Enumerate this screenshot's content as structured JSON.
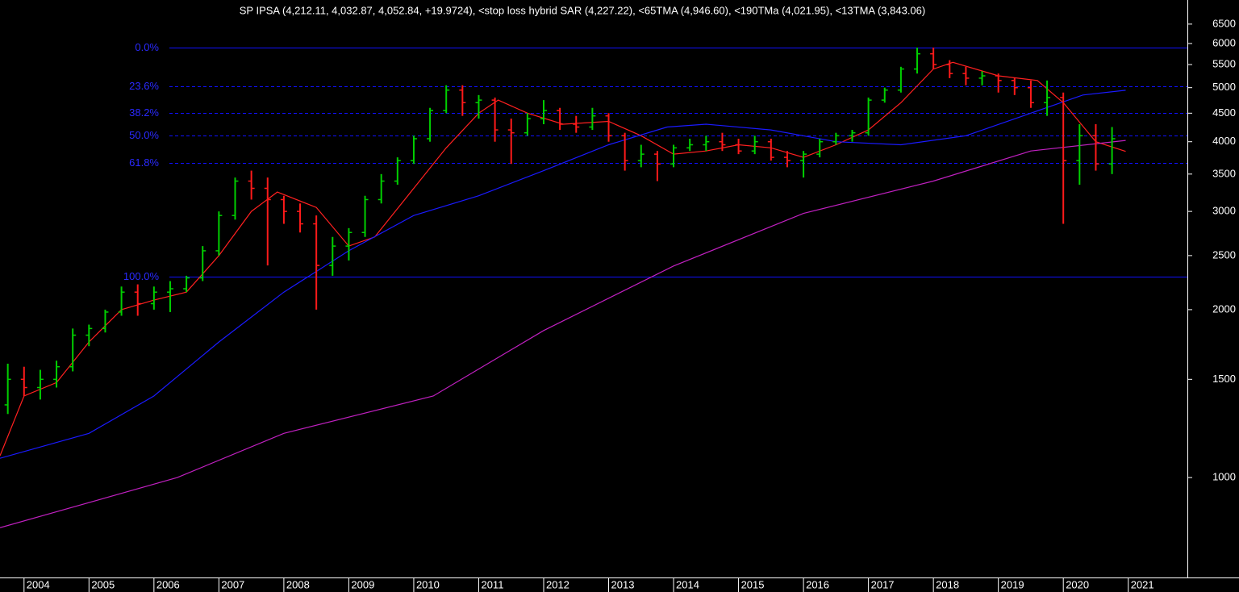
{
  "chart_data": {
    "type": "ohlc",
    "title": "SP IPSA (4,212.11, 4,032.87, 4,052.84, +19.9724), <stop loss hybrid SAR (4,227.22), <65TMA (4,946.60), <190TMa (4,021.95), <13TMA (3,843.06)",
    "log_scale": true,
    "xlim": [
      2003.63,
      2021.91
    ],
    "ylim": [
      662,
      7180
    ],
    "xticks": [
      2004,
      2005,
      2006,
      2007,
      2008,
      2009,
      2010,
      2011,
      2012,
      2013,
      2014,
      2015,
      2016,
      2017,
      2018,
      2019,
      2020,
      2021
    ],
    "yticks": [
      1000,
      1500,
      2000,
      2500,
      3000,
      3500,
      4000,
      4500,
      5000,
      5500,
      6000,
      6500
    ],
    "up_color": "#00d000",
    "down_color": "#ff1a1a",
    "bars": {
      "x": [
        2003.75,
        2004.0,
        2004.25,
        2004.5,
        2004.75,
        2005.0,
        2005.25,
        2005.5,
        2005.75,
        2006.0,
        2006.25,
        2006.5,
        2006.75,
        2007.0,
        2007.25,
        2007.5,
        2007.75,
        2008.0,
        2008.25,
        2008.5,
        2008.75,
        2009.0,
        2009.25,
        2009.5,
        2009.75,
        2010.0,
        2010.25,
        2010.5,
        2010.75,
        2011.0,
        2011.25,
        2011.5,
        2011.75,
        2012.0,
        2012.25,
        2012.5,
        2012.75,
        2013.0,
        2013.25,
        2013.5,
        2013.75,
        2014.0,
        2014.25,
        2014.5,
        2014.75,
        2015.0,
        2015.25,
        2015.5,
        2015.75,
        2016.0,
        2016.25,
        2016.5,
        2016.75,
        2017.0,
        2017.25,
        2017.5,
        2017.75,
        2018.0,
        2018.25,
        2018.5,
        2018.75,
        2019.0,
        2019.25,
        2019.5,
        2019.75,
        2020.0,
        2020.25,
        2020.5,
        2020.75
      ],
      "open": [
        1350,
        1500,
        1450,
        1500,
        1580,
        1800,
        1850,
        1980,
        2150,
        2050,
        2150,
        2180,
        2280,
        2550,
        2950,
        3400,
        3300,
        3150,
        3000,
        2850,
        2400,
        2600,
        2750,
        3150,
        3400,
        3700,
        4050,
        4550,
        4950,
        4700,
        4750,
        4200,
        4150,
        4400,
        4550,
        4300,
        4250,
        4450,
        4100,
        3700,
        3800,
        3650,
        3900,
        3950,
        4000,
        3950,
        3850,
        4000,
        3750,
        3700,
        3800,
        4000,
        4100,
        4150,
        4750,
        4950,
        5400,
        5750,
        5500,
        5300,
        5200,
        5250,
        5150,
        5000,
        4700,
        4800,
        3700,
        4100,
        3650
      ],
      "high": [
        1600,
        1580,
        1560,
        1620,
        1850,
        1880,
        2000,
        2200,
        2220,
        2200,
        2250,
        2300,
        2600,
        3000,
        3450,
        3550,
        3450,
        3200,
        3100,
        2950,
        2700,
        2800,
        3200,
        3500,
        3750,
        4100,
        4600,
        5050,
        5050,
        4850,
        4800,
        4400,
        4500,
        4750,
        4600,
        4450,
        4600,
        4500,
        4150,
        3950,
        3850,
        3950,
        4050,
        4100,
        4150,
        4050,
        4100,
        4050,
        3850,
        3850,
        4050,
        4150,
        4200,
        4800,
        5000,
        5450,
        5900,
        5900,
        5600,
        5450,
        5350,
        5300,
        5200,
        5150,
        5150,
        4900,
        4300,
        4300,
        4250
      ],
      "low": [
        1300,
        1400,
        1380,
        1450,
        1550,
        1720,
        1820,
        1950,
        1950,
        2000,
        1980,
        2150,
        2250,
        2500,
        2900,
        3150,
        2400,
        2850,
        2750,
        2000,
        2300,
        2450,
        2700,
        3100,
        3350,
        3650,
        4000,
        4500,
        4450,
        4400,
        4000,
        3650,
        4100,
        4300,
        4200,
        4150,
        4200,
        4000,
        3550,
        3600,
        3400,
        3600,
        3850,
        3850,
        3850,
        3800,
        3800,
        3700,
        3600,
        3450,
        3750,
        3950,
        4000,
        4100,
        4700,
        4900,
        5300,
        5400,
        5200,
        5050,
        5050,
        4900,
        4850,
        4600,
        4450,
        2850,
        3350,
        3550,
        3500
      ],
      "close": [
        1500,
        1450,
        1500,
        1580,
        1800,
        1850,
        1980,
        2150,
        2050,
        2150,
        2180,
        2280,
        2550,
        2950,
        3400,
        3300,
        3150,
        3000,
        2850,
        2400,
        2600,
        2750,
        3150,
        3400,
        3700,
        4050,
        4550,
        4950,
        4700,
        4750,
        4200,
        4150,
        4400,
        4550,
        4300,
        4250,
        4450,
        4100,
        3700,
        3800,
        3650,
        3900,
        3950,
        4000,
        3950,
        3850,
        4000,
        3750,
        3700,
        3800,
        4000,
        4100,
        4150,
        4750,
        4950,
        5400,
        5750,
        5500,
        5300,
        5200,
        5250,
        5150,
        5000,
        4700,
        4800,
        3700,
        4100,
        3650,
        4050
      ]
    },
    "lines": [
      {
        "color": "#ff2020",
        "x": [
          2003.63,
          2004.0,
          2004.5,
          2005.0,
          2005.5,
          2006.0,
          2006.5,
          2007.0,
          2007.5,
          2007.9,
          2008.5,
          2009.0,
          2009.4,
          2010.0,
          2010.5,
          2011.0,
          2011.3,
          2011.75,
          2012.3,
          2013.0,
          2013.5,
          2014.0,
          2014.5,
          2015.0,
          2015.5,
          2016.0,
          2016.5,
          2017.0,
          2017.5,
          2018.0,
          2018.3,
          2019.0,
          2019.6,
          2020.0,
          2020.5,
          2020.96
        ],
        "values": [
          1094,
          1400,
          1480,
          1750,
          2000,
          2080,
          2150,
          2500,
          3000,
          3250,
          3050,
          2600,
          2700,
          3300,
          3900,
          4500,
          4750,
          4500,
          4300,
          4350,
          4100,
          3800,
          3850,
          3950,
          3900,
          3750,
          3950,
          4200,
          4700,
          5400,
          5550,
          5250,
          5150,
          4700,
          4000,
          3843.06
        ]
      },
      {
        "color": "#1a1aff",
        "x": [
          2003.63,
          2005.0,
          2006.0,
          2007.0,
          2008.0,
          2009.0,
          2010.0,
          2011.0,
          2012.0,
          2013.0,
          2013.9,
          2014.5,
          2015.5,
          2016.5,
          2017.5,
          2018.5,
          2019.5,
          2020.3,
          2020.96
        ],
        "values": [
          1083,
          1200,
          1400,
          1750,
          2150,
          2550,
          2950,
          3200,
          3550,
          3950,
          4250,
          4300,
          4200,
          4000,
          3950,
          4100,
          4500,
          4850,
          4946.6
        ]
      },
      {
        "color": "#c020c0",
        "x": [
          2003.63,
          2006.36,
          2008.0,
          2010.3,
          2012.0,
          2014.0,
          2016.0,
          2018.0,
          2019.5,
          2020.96
        ],
        "values": [
          813,
          1000,
          1200,
          1400,
          1835,
          2395,
          2975,
          3400,
          3850,
          4021.95
        ]
      }
    ],
    "fib_levels": [
      {
        "value": 5890,
        "label": "0.0%",
        "style": "solid"
      },
      {
        "value": 5020,
        "label": "23.6%",
        "style": "dashed"
      },
      {
        "value": 4500,
        "label": "38.2%",
        "style": "dashed"
      },
      {
        "value": 4100,
        "label": "50.0%",
        "style": "dashed"
      },
      {
        "value": 3660,
        "label": "61.8%",
        "style": "dashed"
      },
      {
        "value": 2293,
        "label": "100.0%",
        "style": "solid"
      }
    ]
  }
}
